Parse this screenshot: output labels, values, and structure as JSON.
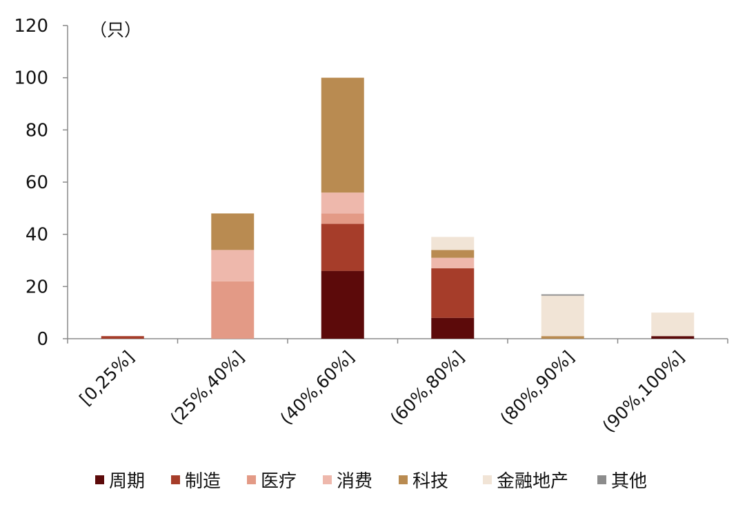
{
  "chart_data": {
    "type": "bar",
    "stacked": true,
    "unit_label": "（只）",
    "categories": [
      "[0,25%]",
      "(25%,40%]",
      "(40%,60%]",
      "(60%,80%]",
      "(80%,90%]",
      "(90%,100%]"
    ],
    "series": [
      {
        "name": "周期",
        "color": "#5c0a0a",
        "values": [
          0,
          0,
          26,
          8,
          0,
          1
        ]
      },
      {
        "name": "制造",
        "color": "#a63d2a",
        "values": [
          1,
          0,
          18,
          19,
          0,
          0
        ]
      },
      {
        "name": "医疗",
        "color": "#e39a86",
        "values": [
          0,
          22,
          4,
          0,
          0,
          0
        ]
      },
      {
        "name": "消费",
        "color": "#eeb8ac",
        "values": [
          0,
          12,
          8,
          4,
          0,
          0
        ]
      },
      {
        "name": "科技",
        "color": "#b98b51",
        "values": [
          0,
          14,
          44,
          3,
          1,
          0
        ]
      },
      {
        "name": "金融地产",
        "color": "#f1e4d6",
        "values": [
          0,
          0,
          0,
          5,
          15.5,
          9
        ]
      },
      {
        "name": "其他",
        "color": "#8c8c8c",
        "values": [
          0,
          0,
          0,
          0,
          0.5,
          0
        ]
      }
    ],
    "yticks": [
      0,
      20,
      40,
      60,
      80,
      100,
      120
    ],
    "ylim": [
      0,
      120
    ],
    "grid": false,
    "legend_position": "bottom"
  }
}
